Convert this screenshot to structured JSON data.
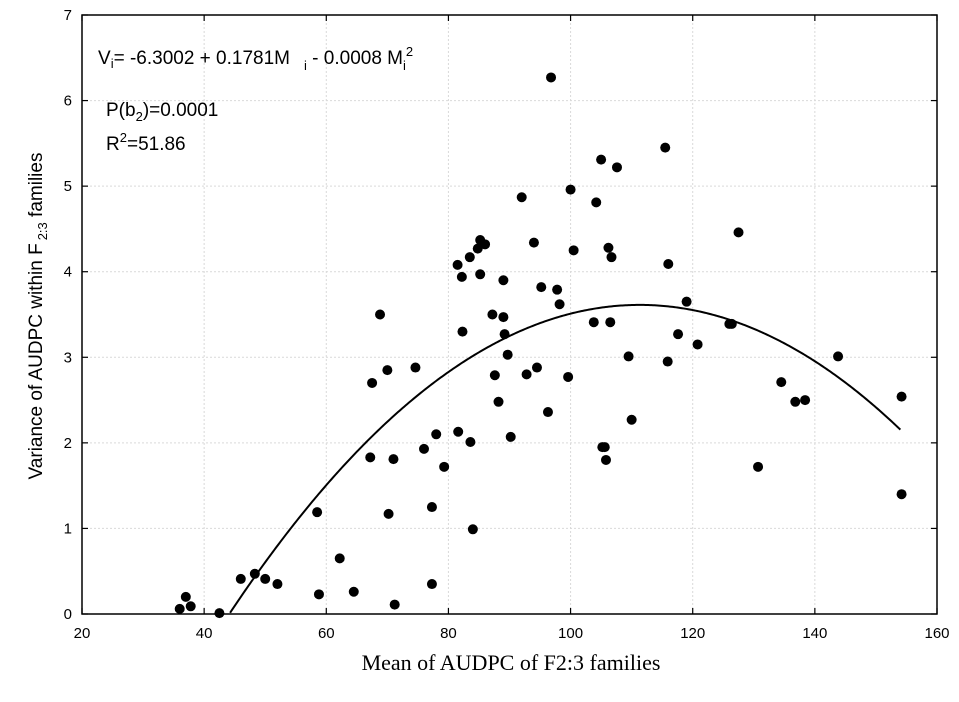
{
  "chart_data": {
    "type": "scatter",
    "title": "",
    "xlabel": "Mean of AUDPC of F2:3 families",
    "ylabel": {
      "main": "Variance of AUDPC within F",
      "subscript": "2:3",
      "suffix": " families"
    },
    "xlim": [
      20,
      160
    ],
    "ylim": [
      0,
      7
    ],
    "xticks": [
      20,
      40,
      60,
      80,
      100,
      120,
      140,
      160
    ],
    "yticks": [
      0,
      1,
      2,
      3,
      4,
      5,
      6,
      7
    ],
    "grid": true,
    "annotations": {
      "equation": {
        "lhs": "V",
        "lhs_sub": "i",
        "body": "= -6.3002 + 0.1781M",
        "sub1": "i",
        "tail": " - 0.0008 M",
        "sub2": "i",
        "sup2": "2"
      },
      "p_value": {
        "prefix": "P(b",
        "sub": "2",
        "suffix": ")=0.0001"
      },
      "r_squared": {
        "prefix": "R",
        "sup": "2",
        "suffix": "=51.86"
      }
    },
    "fit": {
      "type": "quadratic",
      "a": -6.3002,
      "b": 0.1781,
      "c": -0.0008,
      "x_range": [
        36,
        154
      ]
    },
    "series": [
      {
        "points": [
          [
            36,
            0.06
          ],
          [
            37,
            0.2
          ],
          [
            37.8,
            0.09
          ],
          [
            42.5,
            0.01
          ],
          [
            46,
            0.41
          ],
          [
            48.3,
            0.47
          ],
          [
            50,
            0.41
          ],
          [
            52,
            0.35
          ],
          [
            58.5,
            1.19
          ],
          [
            58.8,
            0.23
          ],
          [
            62.2,
            0.65
          ],
          [
            64.5,
            0.26
          ],
          [
            67.2,
            1.83
          ],
          [
            67.5,
            2.7
          ],
          [
            68.8,
            3.5
          ],
          [
            70,
            2.85
          ],
          [
            70.2,
            1.17
          ],
          [
            71,
            1.81
          ],
          [
            71.2,
            0.11
          ],
          [
            74.6,
            2.88
          ],
          [
            76,
            1.93
          ],
          [
            77.3,
            1.25
          ],
          [
            77.3,
            0.35
          ],
          [
            78,
            2.1
          ],
          [
            79.3,
            1.72
          ],
          [
            81.5,
            4.08
          ],
          [
            81.6,
            2.13
          ],
          [
            82.2,
            3.94
          ],
          [
            82.3,
            3.3
          ],
          [
            83.5,
            4.17
          ],
          [
            83.6,
            2.01
          ],
          [
            84,
            0.99
          ],
          [
            84.8,
            4.27
          ],
          [
            85.2,
            4.37
          ],
          [
            85.2,
            3.97
          ],
          [
            86,
            4.32
          ],
          [
            87.2,
            3.5
          ],
          [
            87.6,
            2.79
          ],
          [
            88.2,
            2.48
          ],
          [
            89,
            3.9
          ],
          [
            89,
            3.47
          ],
          [
            89.2,
            3.27
          ],
          [
            89.7,
            3.03
          ],
          [
            90.2,
            2.07
          ],
          [
            92,
            4.87
          ],
          [
            92.8,
            2.8
          ],
          [
            94,
            4.34
          ],
          [
            94.5,
            2.88
          ],
          [
            95.2,
            3.82
          ],
          [
            96.3,
            2.36
          ],
          [
            96.8,
            6.27
          ],
          [
            97.8,
            3.79
          ],
          [
            98.2,
            3.62
          ],
          [
            99.6,
            2.77
          ],
          [
            100,
            4.96
          ],
          [
            100.5,
            4.25
          ],
          [
            103.8,
            3.41
          ],
          [
            104.2,
            4.81
          ],
          [
            105,
            5.31
          ],
          [
            105.2,
            1.95
          ],
          [
            105.6,
            1.95
          ],
          [
            105.8,
            1.8
          ],
          [
            106.2,
            4.28
          ],
          [
            106.5,
            3.41
          ],
          [
            106.7,
            4.17
          ],
          [
            107.6,
            5.22
          ],
          [
            109.5,
            3.01
          ],
          [
            110,
            2.27
          ],
          [
            115.5,
            5.45
          ],
          [
            115.9,
            2.95
          ],
          [
            116,
            4.09
          ],
          [
            117.6,
            3.27
          ],
          [
            119,
            3.65
          ],
          [
            120.8,
            3.15
          ],
          [
            126,
            3.39
          ],
          [
            126.4,
            3.39
          ],
          [
            127.5,
            4.46
          ],
          [
            130.7,
            1.72
          ],
          [
            134.5,
            2.71
          ],
          [
            136.8,
            2.48
          ],
          [
            138.4,
            2.5
          ],
          [
            143.8,
            3.01
          ],
          [
            154.2,
            2.54
          ],
          [
            154.2,
            1.4
          ]
        ]
      }
    ]
  }
}
